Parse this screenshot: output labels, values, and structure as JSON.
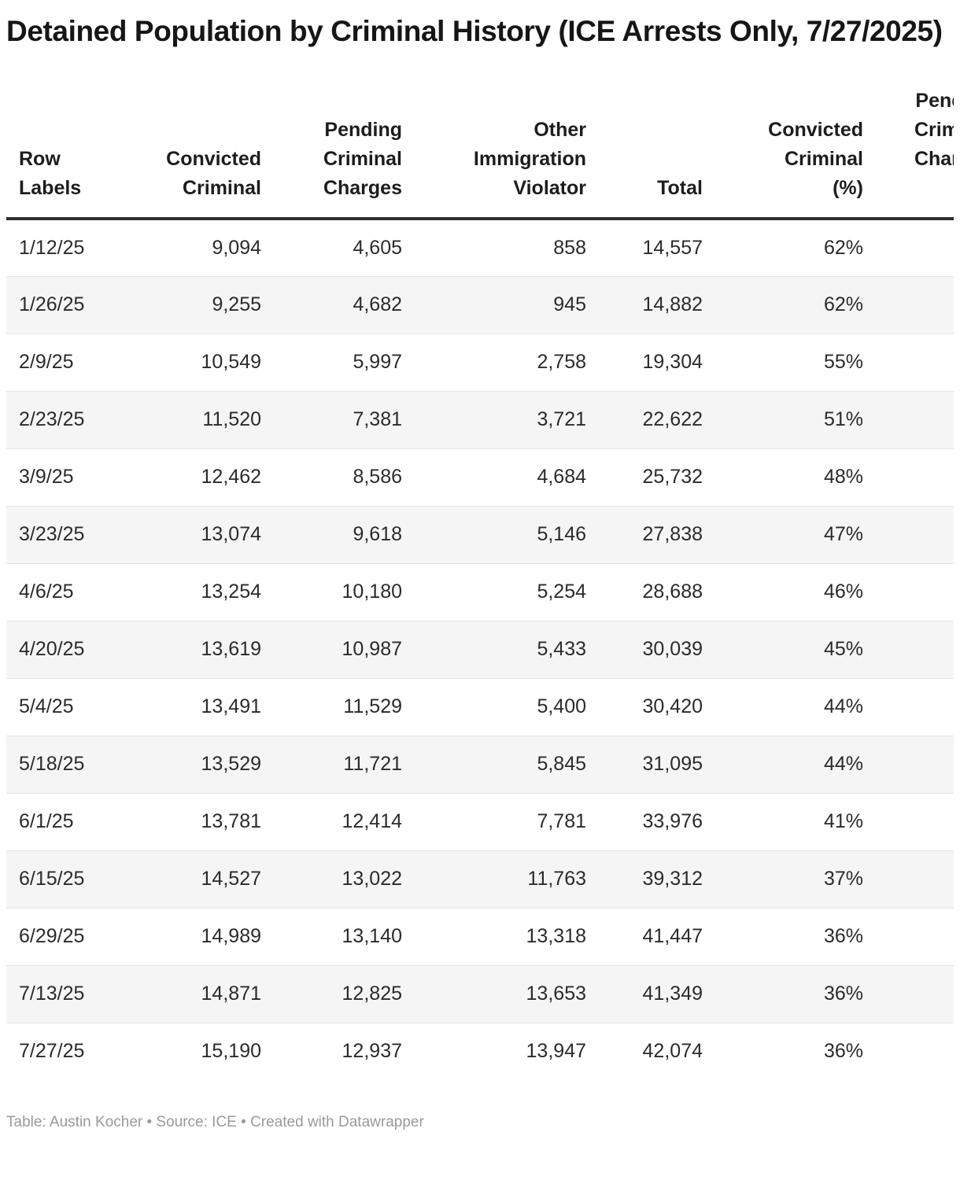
{
  "chart_data": {
    "type": "table",
    "title": "Detained Population by Criminal History (ICE Arrests Only, 7/27/2025)",
    "columns": [
      {
        "label": "Row Labels",
        "label_wrapped": "Row\nLabels",
        "align": "left"
      },
      {
        "label": "Convicted Criminal",
        "label_wrapped": "Convicted\nCriminal",
        "align": "right"
      },
      {
        "label": "Pending Criminal Charges",
        "label_wrapped": "Pending\nCriminal\nCharges",
        "align": "right"
      },
      {
        "label": "Other Immigration Violator",
        "label_wrapped": "Other\nImmigration\nViolator",
        "align": "right"
      },
      {
        "label": "Total",
        "label_wrapped": "Total",
        "align": "right"
      },
      {
        "label": "Convicted Criminal (%)",
        "label_wrapped": "Convicted\nCriminal\n(%)",
        "align": "right"
      },
      {
        "label": "Pending Criminal Charges (%)",
        "label_wrapped": "Pending\nCriminal\nCharges\n(%)",
        "align": "right"
      }
    ],
    "rows": [
      [
        "1/12/25",
        "9,094",
        "4,605",
        "858",
        "14,557",
        "62%",
        ""
      ],
      [
        "1/26/25",
        "9,255",
        "4,682",
        "945",
        "14,882",
        "62%",
        ""
      ],
      [
        "2/9/25",
        "10,549",
        "5,997",
        "2,758",
        "19,304",
        "55%",
        ""
      ],
      [
        "2/23/25",
        "11,520",
        "7,381",
        "3,721",
        "22,622",
        "51%",
        ""
      ],
      [
        "3/9/25",
        "12,462",
        "8,586",
        "4,684",
        "25,732",
        "48%",
        ""
      ],
      [
        "3/23/25",
        "13,074",
        "9,618",
        "5,146",
        "27,838",
        "47%",
        ""
      ],
      [
        "4/6/25",
        "13,254",
        "10,180",
        "5,254",
        "28,688",
        "46%",
        ""
      ],
      [
        "4/20/25",
        "13,619",
        "10,987",
        "5,433",
        "30,039",
        "45%",
        ""
      ],
      [
        "5/4/25",
        "13,491",
        "11,529",
        "5,400",
        "30,420",
        "44%",
        ""
      ],
      [
        "5/18/25",
        "13,529",
        "11,721",
        "5,845",
        "31,095",
        "44%",
        ""
      ],
      [
        "6/1/25",
        "13,781",
        "12,414",
        "7,781",
        "33,976",
        "41%",
        ""
      ],
      [
        "6/15/25",
        "14,527",
        "13,022",
        "11,763",
        "39,312",
        "37%",
        ""
      ],
      [
        "6/29/25",
        "14,989",
        "13,140",
        "13,318",
        "41,447",
        "36%",
        ""
      ],
      [
        "7/13/25",
        "14,871",
        "12,825",
        "13,653",
        "41,349",
        "36%",
        ""
      ],
      [
        "7/27/25",
        "15,190",
        "12,937",
        "13,947",
        "42,074",
        "36%",
        ""
      ]
    ],
    "colors": {
      "title_text": "#161616",
      "header_text": "#1d1d1d",
      "body_text": "#2b2b2b",
      "stripe": "#f5f5f5",
      "header_rule": "#2e2e2e",
      "footnote_text": "#9a9a9a"
    }
  },
  "footnote": "Table: Austin Kocher • Source: ICE • Created with Datawrapper"
}
